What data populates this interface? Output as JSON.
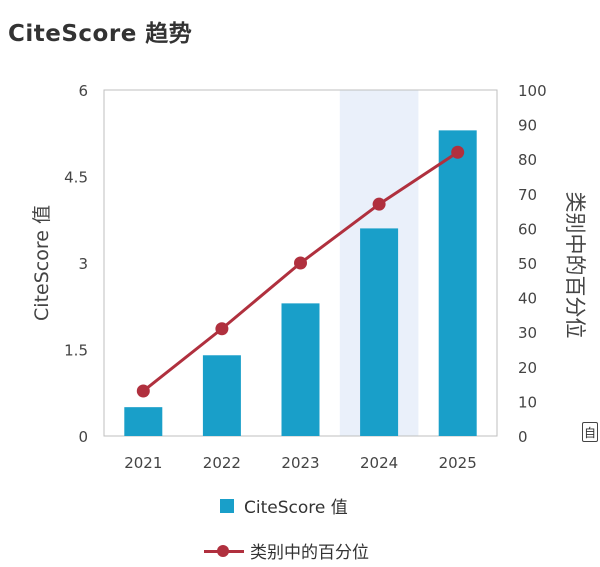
{
  "title": "CiteScore 趋势",
  "colors": {
    "bar": "#199fc9",
    "line": "#b0303e",
    "highlight": "#eaf0fa",
    "axis": "#bfbfbf"
  },
  "edge_tag": "自",
  "chart_data": {
    "type": "bar",
    "categories": [
      "2021",
      "2022",
      "2023",
      "2024",
      "2025"
    ],
    "highlight_category": "2024",
    "ylabel": "CiteScore 值",
    "y2label": "类别中的百分位",
    "ylim": [
      0,
      6
    ],
    "yticks": [
      "0",
      "1.5",
      "3",
      "4.5",
      "6"
    ],
    "y2lim": [
      0,
      100
    ],
    "y2ticks": [
      "0",
      "10",
      "20",
      "30",
      "40",
      "50",
      "60",
      "70",
      "80",
      "90",
      "100"
    ],
    "grid": false,
    "legend_position": "bottom",
    "series": [
      {
        "name": "CiteScore 值",
        "type": "bar",
        "axis": "left",
        "values": [
          0.5,
          1.4,
          2.3,
          3.6,
          5.3
        ]
      },
      {
        "name": "类别中的百分位",
        "type": "line",
        "axis": "right",
        "values": [
          13,
          31,
          50,
          67,
          82
        ]
      }
    ]
  }
}
